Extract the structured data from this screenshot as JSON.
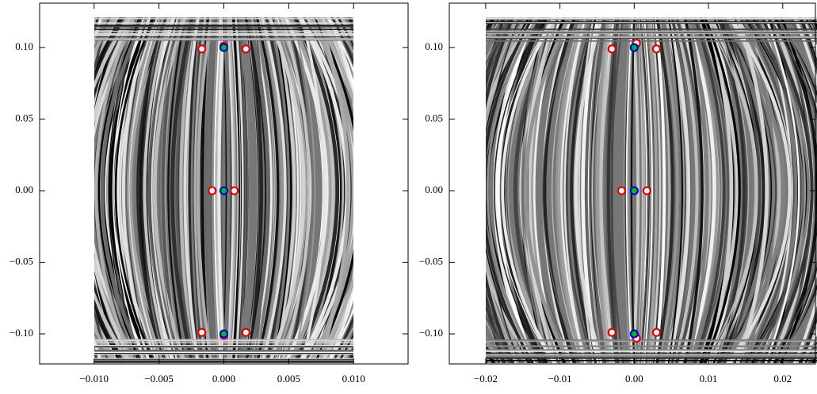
{
  "chart_data": [
    {
      "type": "scatter",
      "xlim": [
        -0.0142,
        0.0142
      ],
      "ylim": [
        -0.121,
        0.131
      ],
      "xticks": [
        {
          "value": -0.01,
          "label": "−0.010"
        },
        {
          "value": -0.005,
          "label": "−0.005"
        },
        {
          "value": 0,
          "label": "0.000"
        },
        {
          "value": 0.005,
          "label": "0.005"
        },
        {
          "value": 0.01,
          "label": "0.010"
        }
      ],
      "yticks": [
        {
          "value": -0.1,
          "label": "−0.10"
        },
        {
          "value": -0.05,
          "label": "−0.05"
        },
        {
          "value": 0,
          "label": "0.00"
        },
        {
          "value": 0.05,
          "label": "0.05"
        },
        {
          "value": 0.1,
          "label": "0.10"
        }
      ],
      "series": [
        {
          "color": "#e00000",
          "facecolor": "#ffffff",
          "x": [
            -0.0017,
            0.0017,
            -0.0009,
            0.0008,
            -0.0017,
            0.0017,
            0,
            0
          ],
          "values": [
            0.099,
            0.099,
            0,
            0,
            -0.099,
            -0.099,
            0.101,
            -0.101
          ]
        },
        {
          "color": "#0000ee",
          "facecolor": "#00c000",
          "x": [
            0,
            0,
            0
          ],
          "values": [
            0.1,
            0,
            -0.1
          ]
        }
      ]
    },
    {
      "type": "scatter",
      "xlim": [
        -0.0249,
        0.0244
      ],
      "ylim": [
        -0.121,
        0.131
      ],
      "xticks": [
        {
          "value": -0.02,
          "label": "−0.02"
        },
        {
          "value": -0.01,
          "label": "−0.01"
        },
        {
          "value": 0,
          "label": "0.00"
        },
        {
          "value": 0.01,
          "label": "0.01"
        },
        {
          "value": 0.02,
          "label": "0.02"
        }
      ],
      "yticks": [
        {
          "value": -0.1,
          "label": "−0.10"
        },
        {
          "value": -0.05,
          "label": "−0.05"
        },
        {
          "value": 0,
          "label": "0.00"
        },
        {
          "value": 0.05,
          "label": "0.05"
        },
        {
          "value": 0.1,
          "label": "0.10"
        }
      ],
      "series": [
        {
          "color": "#e00000",
          "facecolor": "#ffffff",
          "x": [
            -0.003,
            0.003,
            -0.0017,
            0.0017,
            -0.003,
            0.003,
            0.0003,
            0.0003
          ],
          "values": [
            0.099,
            0.099,
            0,
            0,
            -0.099,
            -0.099,
            0.103,
            -0.103
          ]
        },
        {
          "color": "#0000ee",
          "facecolor": "#00c000",
          "x": [
            0,
            0,
            0
          ],
          "values": [
            0.1,
            0,
            -0.1
          ]
        }
      ]
    }
  ]
}
